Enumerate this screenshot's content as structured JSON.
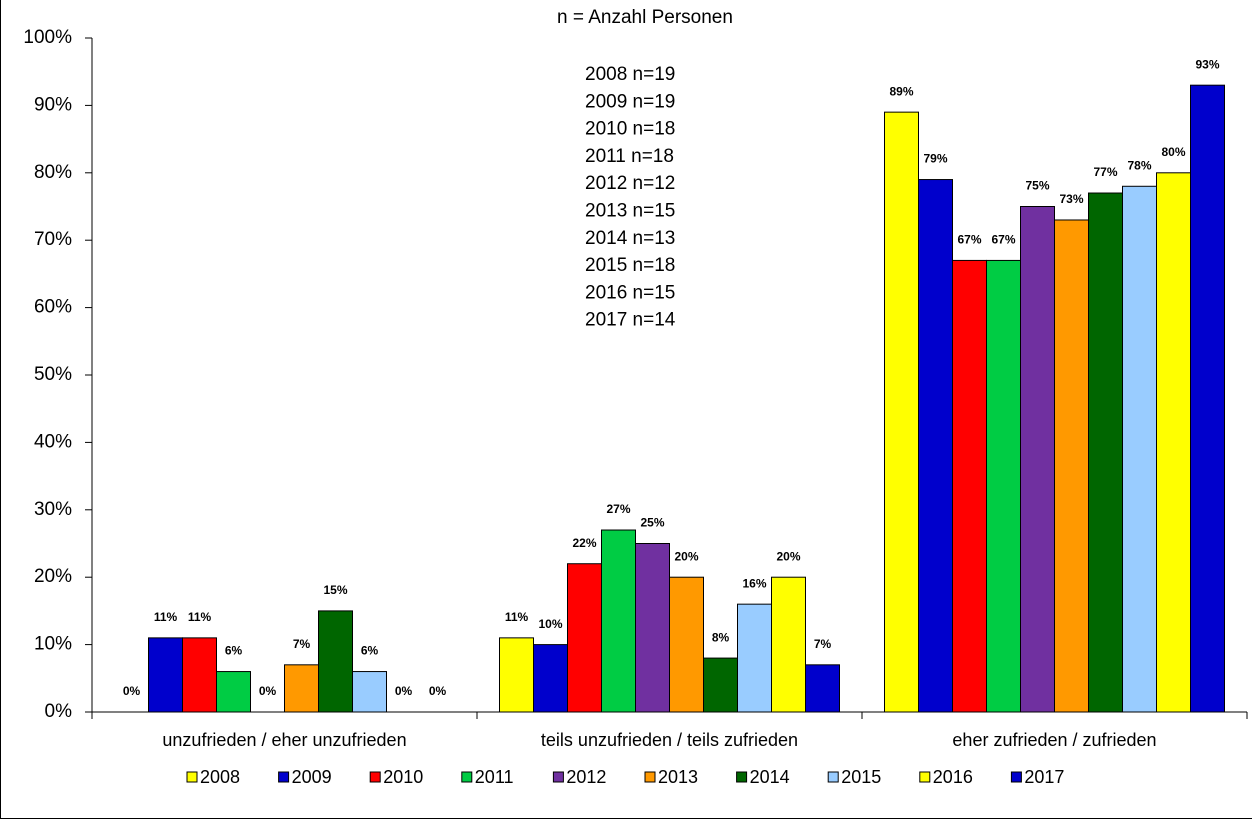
{
  "chart_data": {
    "type": "bar",
    "title": "n = Anzahl Personen",
    "annotations": [
      "2008 n=19",
      "2009 n=19",
      "2010 n=18",
      "2011 n=18",
      "2012 n=12",
      "2013 n=15",
      "2014 n=13",
      "2015 n=18",
      "2016 n=15",
      "2017 n=14"
    ],
    "categories": [
      "unzufrieden / eher unzufrieden",
      "teils unzufrieden / teils zufrieden",
      "eher zufrieden / zufrieden"
    ],
    "series": [
      {
        "name": "2008",
        "color": "#ffff00",
        "values": [
          0,
          11,
          89
        ],
        "value_labels": [
          "0%",
          "11%",
          "89%"
        ]
      },
      {
        "name": "2009",
        "color": "#0000cc",
        "values": [
          11,
          10,
          79
        ],
        "value_labels": [
          "11%",
          "10%",
          "79%"
        ]
      },
      {
        "name": "2010",
        "color": "#ff0000",
        "values": [
          11,
          22,
          67
        ],
        "value_labels": [
          "11%",
          "22%",
          "67%"
        ]
      },
      {
        "name": "2011",
        "color": "#00cc44",
        "values": [
          6,
          27,
          67
        ],
        "value_labels": [
          "6%",
          "27%",
          "67%"
        ]
      },
      {
        "name": "2012",
        "color": "#7030a0",
        "values": [
          0,
          25,
          75
        ],
        "value_labels": [
          "0%",
          "25%",
          "75%"
        ]
      },
      {
        "name": "2013",
        "color": "#ff9900",
        "values": [
          7,
          20,
          73
        ],
        "value_labels": [
          "7%",
          "20%",
          "73%"
        ]
      },
      {
        "name": "2014",
        "color": "#006600",
        "values": [
          15,
          8,
          77
        ],
        "value_labels": [
          "15%",
          "8%",
          "77%"
        ]
      },
      {
        "name": "2015",
        "color": "#99ccff",
        "values": [
          6,
          16,
          78
        ],
        "value_labels": [
          "6%",
          "16%",
          "78%"
        ]
      },
      {
        "name": "2016",
        "color": "#ffff00",
        "values": [
          0,
          20,
          80
        ],
        "value_labels": [
          "0%",
          "20%",
          "80%"
        ]
      },
      {
        "name": "2017",
        "color": "#0000cc",
        "values": [
          0,
          7,
          93
        ],
        "value_labels": [
          "0%",
          "7%",
          "93%"
        ]
      }
    ],
    "ylim": [
      0,
      100
    ],
    "yticks": [
      {
        "value": 0,
        "label": "0%"
      },
      {
        "value": 10,
        "label": "10%"
      },
      {
        "value": 20,
        "label": "20%"
      },
      {
        "value": 30,
        "label": "30%"
      },
      {
        "value": 40,
        "label": "40%"
      },
      {
        "value": 50,
        "label": "50%"
      },
      {
        "value": 60,
        "label": "60%"
      },
      {
        "value": 70,
        "label": "70%"
      },
      {
        "value": 80,
        "label": "80%"
      },
      {
        "value": 90,
        "label": "90%"
      },
      {
        "value": 100,
        "label": "100%"
      }
    ],
    "grid": false,
    "legend": "bottom"
  }
}
